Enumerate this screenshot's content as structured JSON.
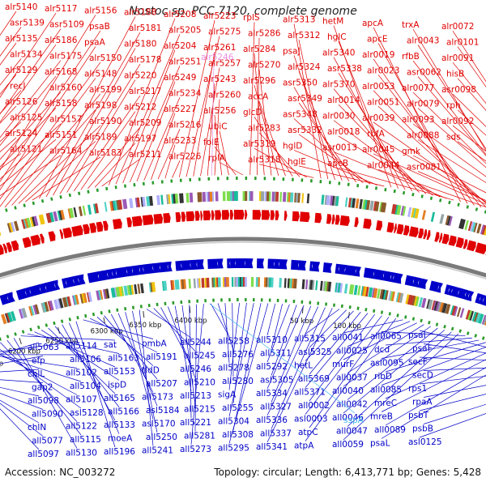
{
  "title": "Nostoc sp. PCC 7120, complete genome",
  "footer": {
    "accession": "Accession: NC_003272",
    "stats": "Topology: circular; Length: 6,413,771 bp; Genes: 5,428"
  },
  "colors": {
    "forward": "#e00000",
    "reverse": "#0000c8",
    "highlight_forward": "#e88fe0",
    "highlight_reverse": "#47b6f0",
    "tick_green": "#2a9a2a",
    "backbone": "#7a7a7a"
  },
  "kbp_labels": [
    "6050 kbp",
    "6100 kbp",
    "6150 kbp",
    "6200 kbp",
    "6250 kbp",
    "6300 kbp",
    "6350 kbp",
    "6400 kbp",
    "50 kbp",
    "100 kbp"
  ],
  "forward_genes": [
    "alr5140",
    "asr5139",
    "alr5135",
    "alr5134",
    "alr5129",
    "recJ",
    "alr5126",
    "alr5125",
    "alr5124",
    "alr5121",
    "alr5117",
    "asr5109",
    "alr5186",
    "alr5175",
    "alr5168",
    "alr5160",
    "alr5158",
    "alr5157",
    "alr5151",
    "alr5164",
    "alr5156",
    "psaB",
    "psaA",
    "alr5150",
    "alr5148",
    "alr5199",
    "alr5198",
    "alr5190",
    "alr5189",
    "alr5183",
    "alr5188",
    "alr5181",
    "alr5180",
    "alr5178",
    "alr5220",
    "alr5217",
    "alr5212",
    "alr5209",
    "alr5197",
    "alr5211",
    "alr5208",
    "alr5205",
    "alr5204",
    "alr5251",
    "alr5249",
    "alr5234",
    "alr5227",
    "alr5216",
    "alr5233",
    "alr5226",
    "alr5223",
    "alr5275",
    "alr5261",
    "alr5257",
    "alr5243",
    "alr5260",
    "alr5256",
    "ubiC",
    "folE",
    "rplA",
    "rplS",
    "alr5286",
    "alr5284",
    "alr5270",
    "alr5296",
    "accA",
    "glcD",
    "alr5283",
    "alr5319",
    "alr5318",
    "alr5313",
    "alr5312",
    "psaJ",
    "alr5324",
    "asr5350",
    "asr5349",
    "asr5348",
    "asr5332",
    "hglD",
    "hglE",
    "hetM",
    "hglC",
    "alr5340",
    "asr5338",
    "alr5370",
    "alr0014",
    "alr0030",
    "alr0018",
    "asr0013",
    "apcB",
    "apcA",
    "apcE",
    "alr0019",
    "alr0023",
    "alr0053",
    "alr0051",
    "alr0039",
    "rbfA",
    "alr0045",
    "alr0044",
    "trxA",
    "alr0043",
    "rfbB",
    "asr0062",
    "alr0077",
    "alr0079",
    "alr0093",
    "alr0088",
    "gmk",
    "asr0081",
    "alr0072",
    "alr0101",
    "alr0091",
    "hisB",
    "asr0098",
    "rph",
    "alr0092",
    "sds"
  ],
  "highlight_forward_gene": "alr5246",
  "reverse_genes": [
    "all5063",
    "efp",
    "chlL",
    "gap2",
    "all5098",
    "all5090",
    "chlN",
    "all5077",
    "all5097",
    "all5114",
    "all5106",
    "all5102",
    "all5104",
    "all5107",
    "asl5128",
    "all5122",
    "all5115",
    "all5130",
    "sat",
    "all5163",
    "all5153",
    "ispD",
    "all5165",
    "all5166",
    "all5133",
    "moeA",
    "all5196",
    "pmbA",
    "all5191",
    "tldD",
    "all5207",
    "all5173",
    "asl5184",
    "asl5170",
    "all5250",
    "all5241",
    "all5244",
    "all5245",
    "all5246",
    "all5210",
    "all5213",
    "all5215",
    "all5221",
    "all5281",
    "all5273",
    "all5258",
    "all5276",
    "all5278",
    "all5280",
    "sigA",
    "all5255",
    "all5304",
    "all5308",
    "all5295",
    "all5310",
    "all5311",
    "all5292",
    "asl5305",
    "all5334",
    "all5327",
    "all5336",
    "all5337",
    "all5341",
    "all5315",
    "asl5325",
    "hetL",
    "all5369",
    "all5371",
    "all0002",
    "asl0003",
    "atpC",
    "atpA",
    "all0041",
    "all0025",
    "murF",
    "all0037",
    "all0040",
    "all0042",
    "all0046",
    "all0047",
    "all0059",
    "all0065",
    "dcd",
    "asl0095",
    "ribD",
    "all0085",
    "mreC",
    "mreB",
    "all0089",
    "psaL",
    "psaI",
    "psaF",
    "secF",
    "secD",
    "rps1",
    "rpaA",
    "psbT",
    "psbB",
    "asl0125"
  ],
  "highlight_reverse_gene": "sspA"
}
